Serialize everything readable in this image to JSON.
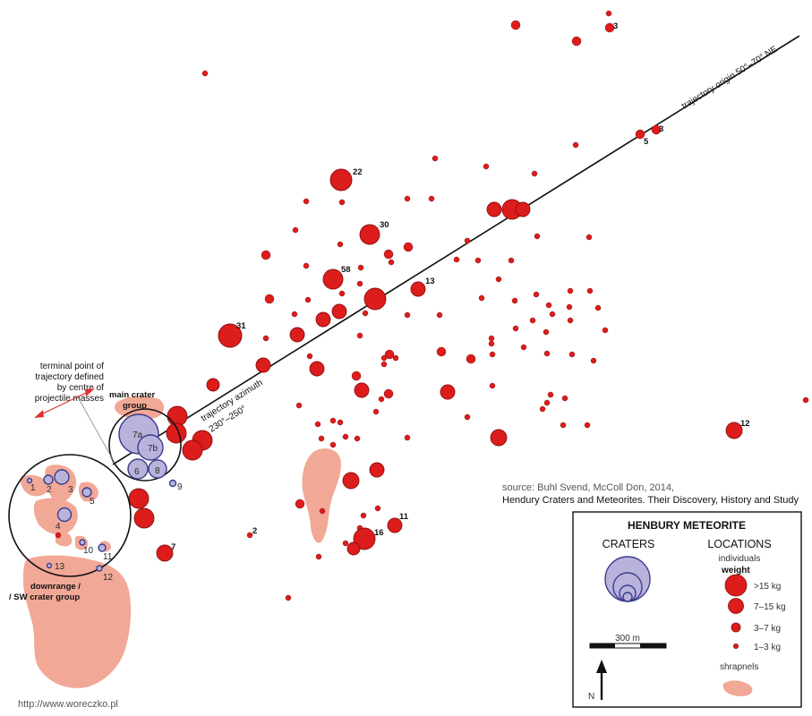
{
  "title": "HENBURY METEORITE",
  "source_line": "source: Buhl Svend, McColl Don, 2014,",
  "reference_line": "Hendury Craters and Meteorites. Their Discovery, History and Study",
  "website": "http://www.woreczko.pl",
  "trajectory_origin_label": "trajectory origin 50°–70° NE",
  "trajectory_azimuth_label": "trajectory azimuth",
  "trajectory_azimuth_range": "230°–250°",
  "terminal_point_label": [
    "terminal point of",
    "trajectory defined",
    "by centre of",
    "projectile masses"
  ],
  "main_crater_group_label": [
    "main crater",
    "group"
  ],
  "sw_group_label": [
    "downrange /",
    "/ SW crater group"
  ],
  "legend": {
    "craters": "CRATERS",
    "locations": "LOCATIONS",
    "individuals": "individuals",
    "weight": "weight",
    "classes": [
      {
        "label": ">15 kg",
        "size": "largest"
      },
      {
        "label": "7–15 kg",
        "size": "large"
      },
      {
        "label": "3–7 kg",
        "size": "medium"
      },
      {
        "label": "1–3 kg",
        "size": "small"
      }
    ],
    "scale": "300 m",
    "north": "N",
    "shrapnels": "shrapnels"
  },
  "colors": {
    "meteorite": "#dd1c1c",
    "meteorite_stroke": "#8a0f0f",
    "crater": "#b9b3dc",
    "crater_stroke": "#3a3d8c",
    "shrapnel": "#f2a896",
    "trajectory": "#111111",
    "arrow": "#e03030"
  },
  "crater_labels": [
    "1",
    "2",
    "3",
    "4",
    "5",
    "6",
    "7a",
    "7b",
    "8",
    "9",
    "10",
    "11",
    "12",
    "13"
  ],
  "weight_labels": [
    "3",
    "3",
    "5",
    "22",
    "30",
    "58",
    "13",
    "31",
    "12",
    "11",
    "16",
    "2",
    "7"
  ]
}
